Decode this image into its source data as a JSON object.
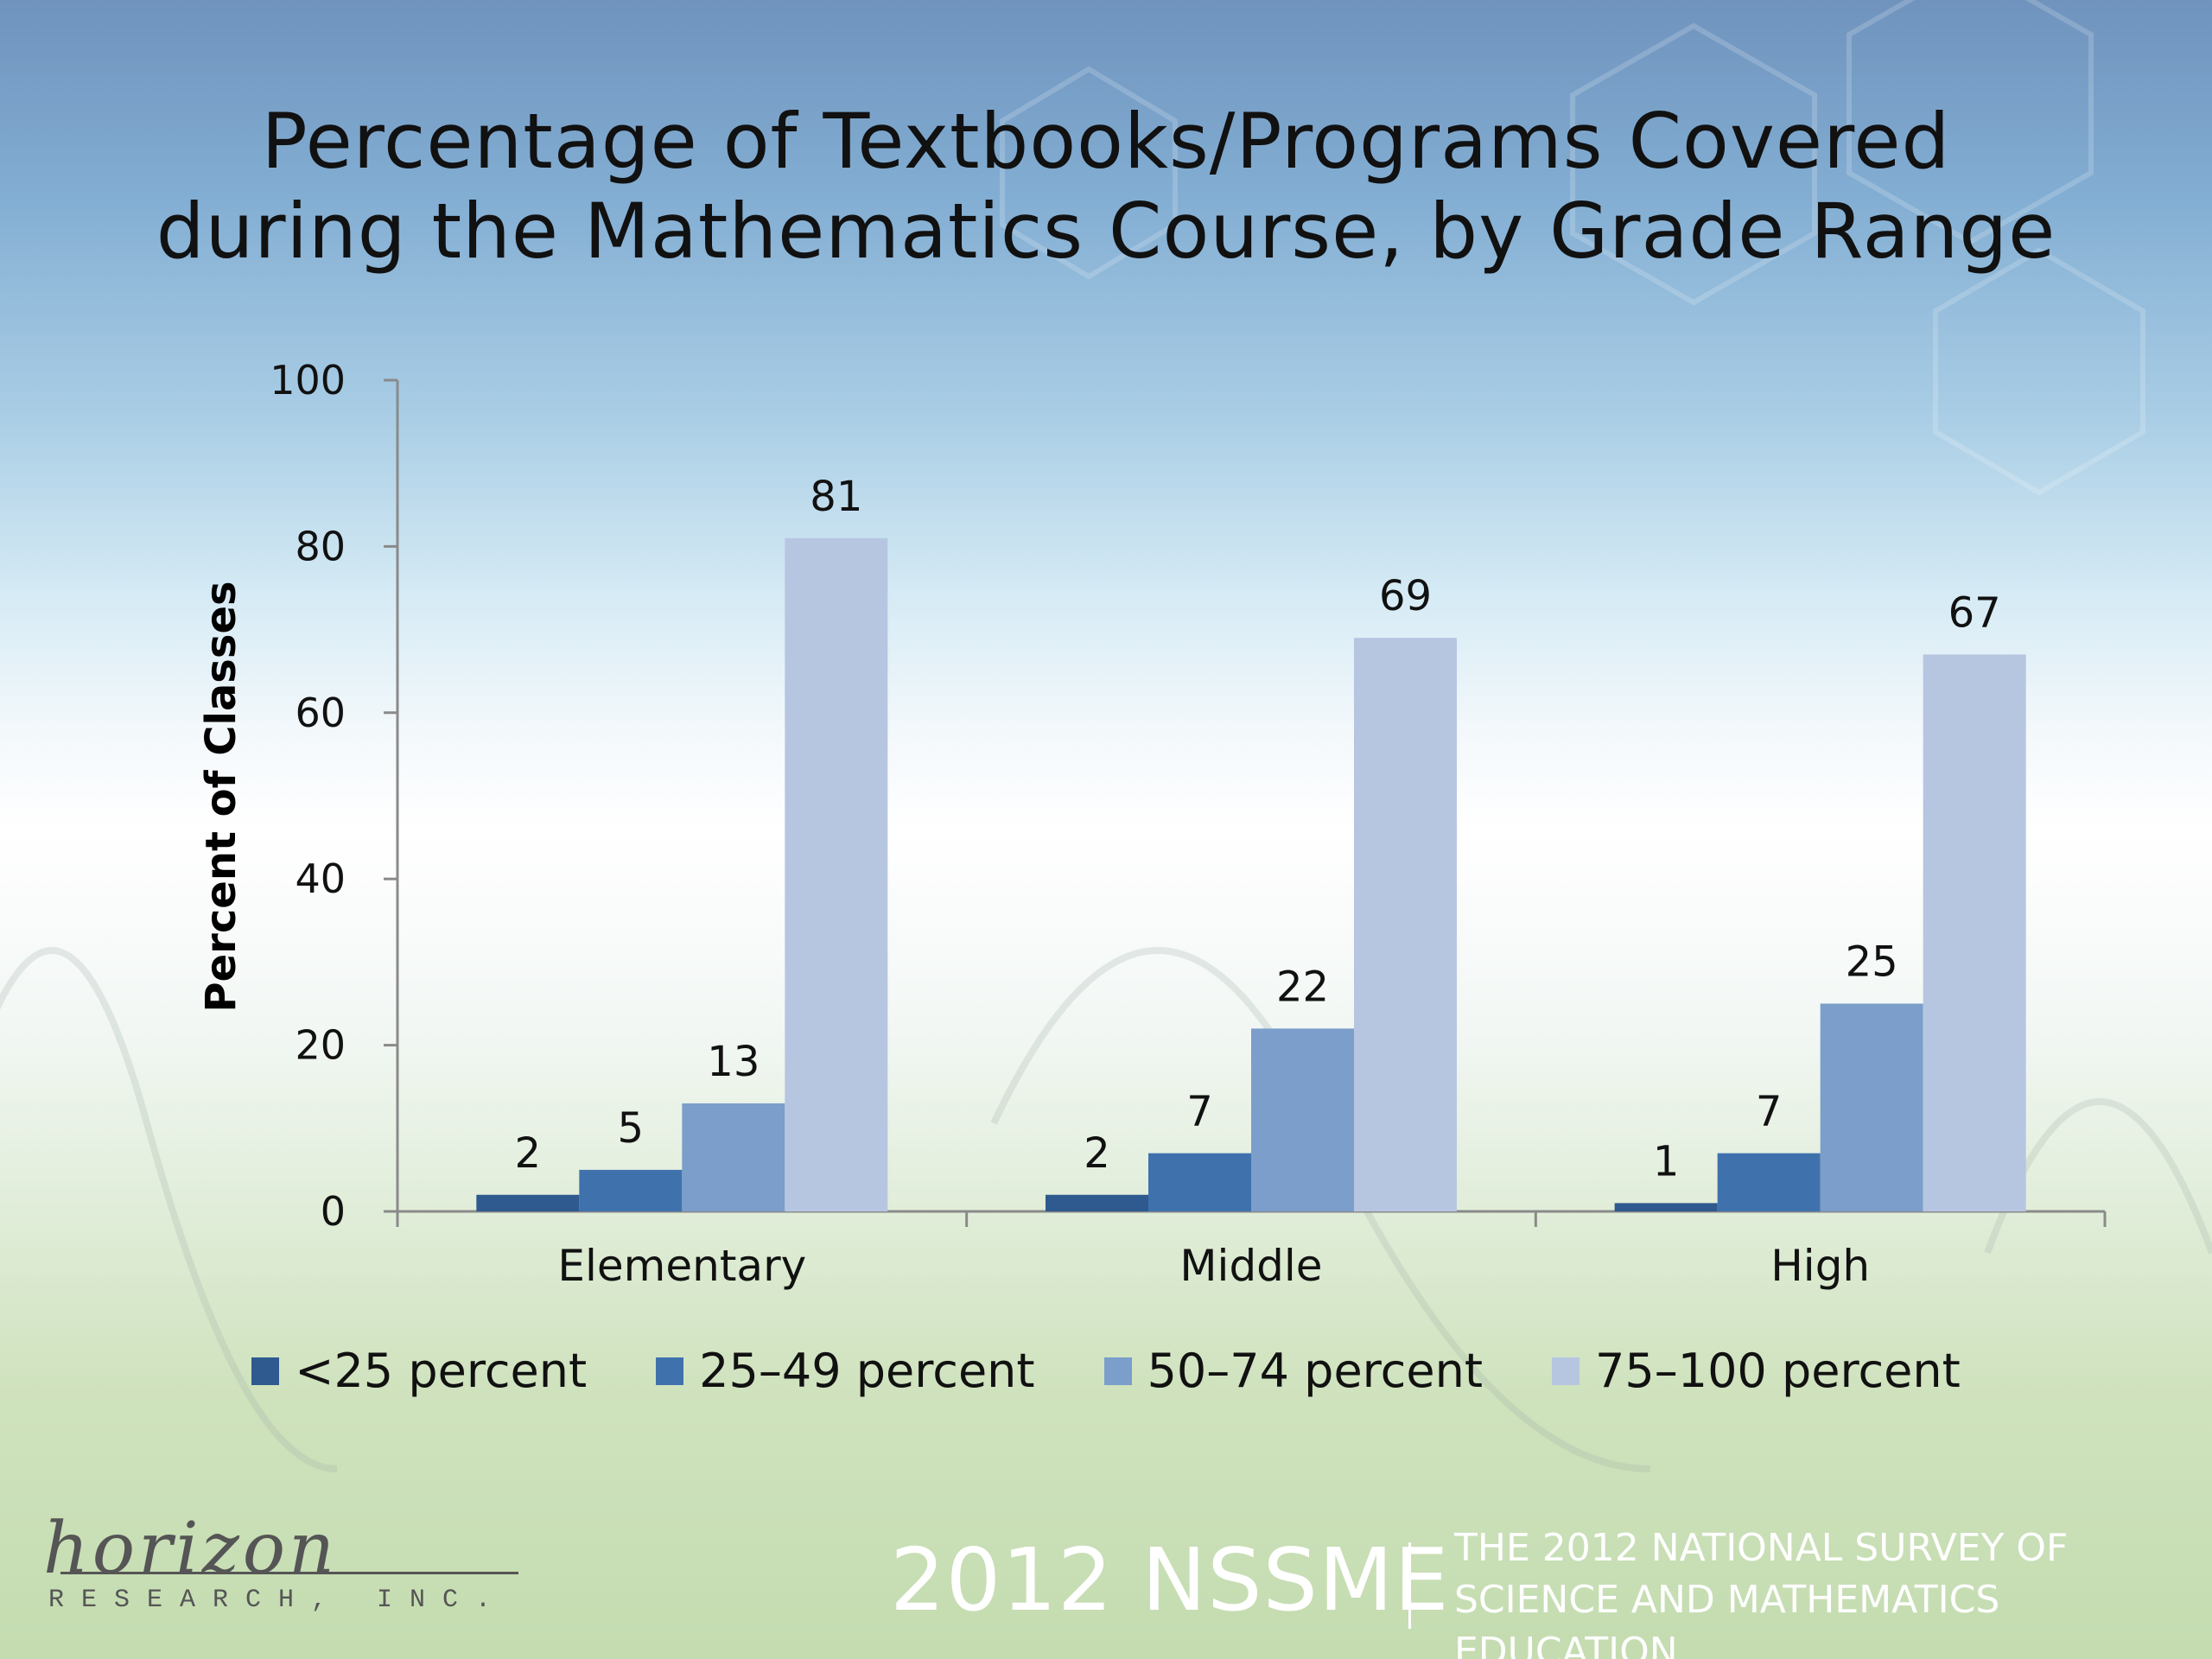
{
  "title": {
    "line1": "Percentage of Textbooks/Programs Covered",
    "line2": "during the Mathematics Course, by Grade Range"
  },
  "chart_data": {
    "type": "bar",
    "categories": [
      "Elementary",
      "Middle",
      "High"
    ],
    "series": [
      {
        "name": "<25 percent",
        "values": [
          2,
          2,
          1
        ],
        "color": "#2e5a8f"
      },
      {
        "name": "25–49 percent",
        "values": [
          5,
          7,
          7
        ],
        "color": "#3f72ad"
      },
      {
        "name": "50–74 percent",
        "values": [
          13,
          22,
          25
        ],
        "color": "#7b9ecb"
      },
      {
        "name": "75–100 percent",
        "values": [
          81,
          69,
          67
        ],
        "color": "#b6c6e1"
      }
    ],
    "ylabel": "Percent of Classes",
    "ylim": [
      0,
      100
    ],
    "yticks": [
      0,
      20,
      40,
      60,
      80,
      100
    ],
    "grid": false,
    "legend_position": "bottom"
  },
  "footer": {
    "logo_script": "horizon",
    "logo_sub": "RESEARCH, INC.",
    "nssme": "2012 NSSME",
    "survey_line1": "THE 2012 NATIONAL SURVEY OF",
    "survey_line2": "SCIENCE AND MATHEMATICS EDUCATION"
  }
}
